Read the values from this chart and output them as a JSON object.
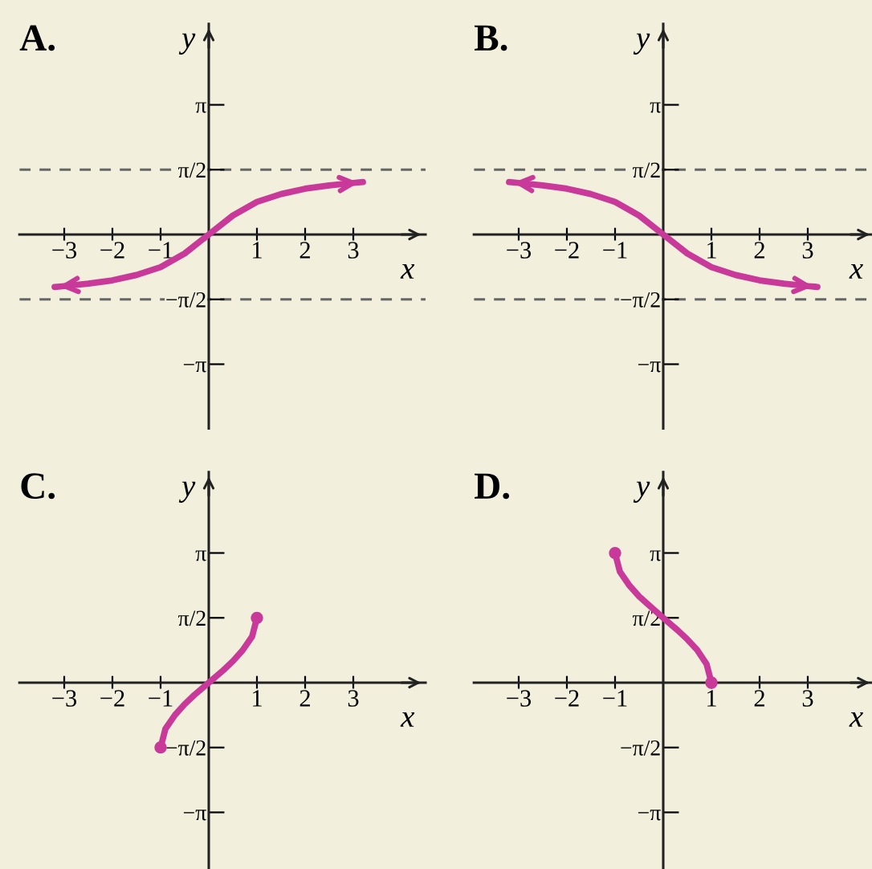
{
  "chart_data": [
    {
      "type": "line",
      "title": "A.",
      "xlabel": "x",
      "ylabel": "y",
      "xlim": [
        -3.93,
        4.5
      ],
      "ylim": [
        -4.7,
        5.1
      ],
      "xticks": [
        {
          "value": -3,
          "label": "−3"
        },
        {
          "value": -2,
          "label": "−2"
        },
        {
          "value": -1,
          "label": "−1"
        },
        1,
        2,
        3
      ],
      "yticks": [
        {
          "value": 3.1416,
          "label": "π"
        },
        {
          "value": 1.5708,
          "label": "π/2"
        },
        {
          "value": -1.5708,
          "label": "−π/2"
        },
        {
          "value": -3.1416,
          "label": "−π"
        }
      ],
      "ref_lines": [
        {
          "axis": "y",
          "value": 1.5708,
          "color": "#666666",
          "line_style": "dashed"
        },
        {
          "axis": "y",
          "value": -1.5708,
          "color": "#666666",
          "line_style": "dashed"
        }
      ],
      "x": [
        -3.2,
        -3,
        -2.5,
        -2,
        -1.5,
        -1,
        -0.5,
        0,
        0.5,
        1,
        1.5,
        2,
        2.5,
        3,
        3.2
      ],
      "series": [
        {
          "color": "#c8399a",
          "values": [
            -1.27,
            -1.25,
            -1.19,
            -1.11,
            -0.98,
            -0.79,
            -0.46,
            0,
            0.46,
            0.79,
            0.98,
            1.11,
            1.19,
            1.25,
            1.27
          ]
        }
      ],
      "line_style": "solid"
    },
    {
      "type": "line",
      "title": "B.",
      "xlabel": "x",
      "ylabel": "y",
      "xlim": [
        -3.93,
        4.38
      ],
      "ylim": [
        -4.7,
        5.1
      ],
      "xticks": [
        {
          "value": -3,
          "label": "−3"
        },
        {
          "value": -2,
          "label": "−2"
        },
        {
          "value": -1,
          "label": "−1"
        },
        1,
        2,
        3
      ],
      "yticks": [
        {
          "value": 3.1416,
          "label": "π"
        },
        {
          "value": 1.5708,
          "label": "π/2"
        },
        {
          "value": -1.5708,
          "label": "−π/2"
        },
        {
          "value": -3.1416,
          "label": "−π"
        }
      ],
      "ref_lines": [
        {
          "axis": "y",
          "value": 1.5708,
          "color": "#666666",
          "line_style": "dashed"
        },
        {
          "axis": "y",
          "value": -1.5708,
          "color": "#666666",
          "line_style": "dashed"
        }
      ],
      "x": [
        -3.2,
        -3,
        -2.5,
        -2,
        -1.5,
        -1,
        -0.5,
        0,
        0.5,
        1,
        1.5,
        2,
        2.5,
        3,
        3.2
      ],
      "series": [
        {
          "color": "#c8399a",
          "values": [
            1.27,
            1.25,
            1.19,
            1.11,
            0.98,
            0.79,
            0.46,
            0,
            -0.46,
            -0.79,
            -0.98,
            -1.11,
            -1.19,
            -1.25,
            -1.27
          ]
        }
      ],
      "line_style": "solid"
    },
    {
      "type": "line",
      "title": "C.",
      "xlabel": "x",
      "ylabel": "y",
      "xlim": [
        -3.93,
        4.5
      ],
      "ylim": [
        -4.56,
        5.1
      ],
      "xticks": [
        {
          "value": -3,
          "label": "−3"
        },
        {
          "value": -2,
          "label": "−2"
        },
        {
          "value": -1,
          "label": "−1"
        },
        1,
        2,
        3
      ],
      "yticks": [
        {
          "value": 3.1416,
          "label": "π"
        },
        {
          "value": 1.5708,
          "label": "π/2"
        },
        {
          "value": -1.5708,
          "label": "−π/2"
        },
        {
          "value": -3.1416,
          "label": "−π"
        }
      ],
      "x": [
        -1,
        -0.9,
        -0.7,
        -0.5,
        -0.3,
        0,
        0.3,
        0.5,
        0.7,
        0.9,
        1
      ],
      "series": [
        {
          "color": "#c8399a",
          "values": [
            -1.57,
            -1.12,
            -0.78,
            -0.52,
            -0.3,
            0,
            0.3,
            0.52,
            0.78,
            1.12,
            1.57
          ]
        },
        {
          "type": "scatter",
          "marker": "circle",
          "color": "#c8399a",
          "values": [
            -1.57,
            null,
            null,
            null,
            null,
            null,
            null,
            null,
            null,
            null,
            1.57
          ]
        }
      ],
      "line_style": "solid"
    },
    {
      "type": "line",
      "title": "D.",
      "xlabel": "x",
      "ylabel": "y",
      "xlim": [
        -3.93,
        4.38
      ],
      "ylim": [
        -4.56,
        5.1
      ],
      "xticks": [
        {
          "value": -3,
          "label": "−3"
        },
        {
          "value": -2,
          "label": "−2"
        },
        {
          "value": -1,
          "label": "−1"
        },
        1,
        2,
        3
      ],
      "yticks": [
        {
          "value": 3.1416,
          "label": "π"
        },
        {
          "value": 1.5708,
          "label": "π/2"
        },
        {
          "value": -1.5708,
          "label": "−π/2"
        },
        {
          "value": -3.1416,
          "label": "−π"
        }
      ],
      "x": [
        -1,
        -0.9,
        -0.7,
        -0.5,
        -0.3,
        0,
        0.3,
        0.5,
        0.7,
        0.9,
        1
      ],
      "series": [
        {
          "color": "#c8399a",
          "values": [
            3.14,
            2.69,
            2.35,
            2.09,
            1.88,
            1.57,
            1.27,
            1.05,
            0.8,
            0.45,
            0
          ]
        },
        {
          "type": "scatter",
          "marker": "circle",
          "color": "#c8399a",
          "values": [
            3.14,
            null,
            null,
            null,
            null,
            null,
            null,
            null,
            null,
            null,
            0
          ]
        }
      ],
      "line_style": "solid"
    }
  ]
}
